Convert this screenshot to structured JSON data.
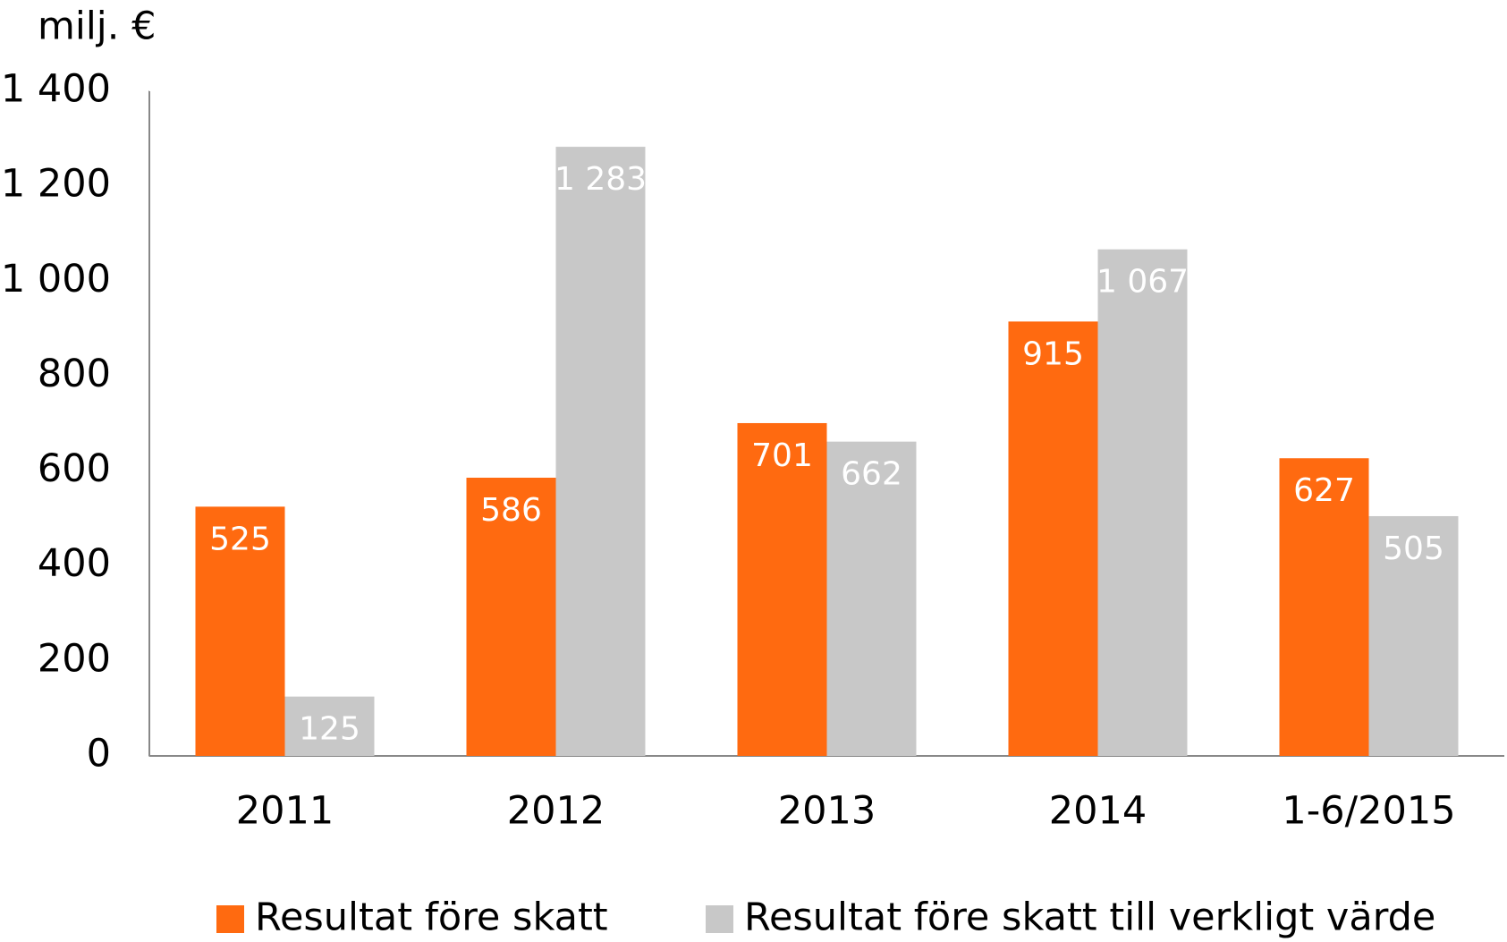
{
  "chart_data": {
    "type": "bar",
    "ylabel": "milj. €",
    "categories": [
      "2011",
      "2012",
      "2013",
      "2014",
      "1-6/2015"
    ],
    "series": [
      {
        "name": "Resultat före skatt",
        "color": "#ff6a10",
        "values": [
          525,
          586,
          701,
          915,
          627
        ]
      },
      {
        "name": "Resultat före skatt till verkligt värde",
        "color": "#c8c8c8",
        "values": [
          125,
          1283,
          662,
          1067,
          505
        ],
        "value_labels": [
          "125",
          "1 283",
          "662",
          "1 067",
          "505"
        ]
      }
    ],
    "ylim": [
      0,
      1400
    ],
    "yticks": [
      0,
      {
        "value": 200,
        "label": "200"
      },
      400,
      600,
      800,
      {
        "value": 1000,
        "label": "1 000"
      },
      {
        "value": 1200,
        "label": "1 200"
      },
      {
        "value": 1400,
        "label": "1 400"
      }
    ],
    "grid": false,
    "legend": "bottom"
  }
}
